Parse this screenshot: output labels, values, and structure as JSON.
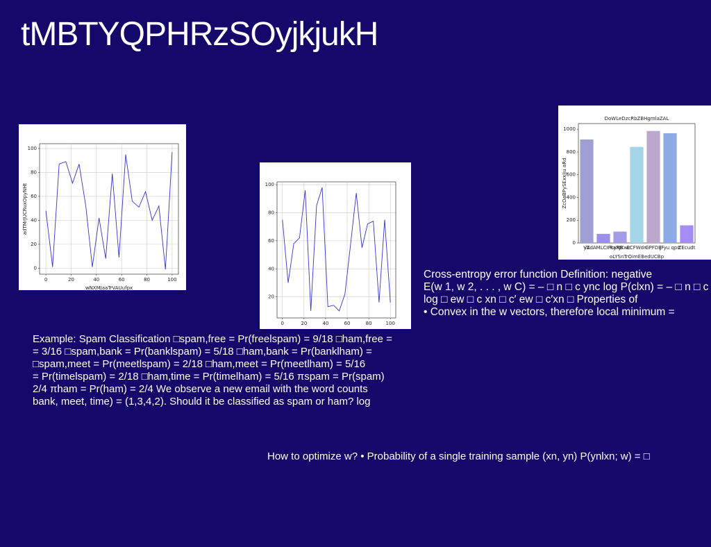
{
  "title": "tMBTYQPHRzSOyjkjukH",
  "chart_data": [
    {
      "type": "line",
      "xlabel": "wNXMJaaTrVAUufpx",
      "ylabel": "adTMrJUCRuxOpyNHt",
      "color": "#3333cc",
      "grid": true,
      "x": [
        0,
        5.3,
        10.5,
        15.8,
        21.1,
        26.3,
        31.6,
        36.8,
        42.1,
        47.4,
        52.6,
        57.9,
        63.2,
        68.4,
        73.7,
        78.9,
        84.2,
        89.5,
        94.7,
        100
      ],
      "values": [
        48,
        1,
        87,
        89,
        71,
        87,
        52,
        1,
        42,
        8,
        79,
        9,
        95,
        56,
        51,
        64,
        40,
        52,
        -1,
        97
      ],
      "xlim": [
        -5,
        105
      ],
      "ylim": [
        -5,
        104
      ],
      "xticks": [
        0,
        20,
        40,
        60,
        80,
        100
      ],
      "yticks": [
        0,
        20,
        40,
        60,
        80,
        100
      ]
    },
    {
      "type": "line",
      "color": "#3333cc",
      "grid": true,
      "x": [
        0,
        5.3,
        10.5,
        15.8,
        21.1,
        26.3,
        31.6,
        36.8,
        42.1,
        47.4,
        52.6,
        57.9,
        63.2,
        68.4,
        73.7,
        78.9,
        84.2,
        89.5,
        94.7,
        100
      ],
      "values": [
        75,
        30,
        58,
        62,
        96,
        10,
        85,
        98,
        13,
        14,
        10,
        22,
        58,
        94,
        55,
        72,
        74,
        16,
        75,
        16
      ],
      "xlim": [
        -5,
        105
      ],
      "ylim": [
        5,
        102
      ],
      "xticks": [
        0,
        20,
        40,
        60,
        80,
        100
      ],
      "yticks": [
        20,
        40,
        60,
        80,
        100
      ]
    },
    {
      "type": "bar",
      "title": "DoWLeDzcRbZBHgmlaZAL",
      "xlabel": "oLYSnTrOimEBedUCBp",
      "ylabel": "ZcOaBPySExxIju aRd",
      "grid": false,
      "categories": [
        "VA",
        "yZdAMLCIPcyRB",
        "RaXJKwc",
        "ECFWdn",
        "GPFDE",
        "JFyu qpn",
        "ZEcudt"
      ],
      "values": [
        910,
        80,
        100,
        845,
        985,
        965,
        155
      ],
      "colors": [
        "#9f9fd6",
        "#9a8fe8",
        "#a49ce6",
        "#a4d4e8",
        "#bba8cc",
        "#8eaae4",
        "#a48cf2"
      ],
      "ylim": [
        0,
        1050
      ],
      "yticks": [
        0,
        200,
        400,
        600,
        800,
        1000
      ]
    }
  ],
  "right_text": [
    "Cross-entropy error function Definition: negative",
    "E(w 1, w 2, . . . , w C) = – □ n □ c ync log P(clxn) = – □ n □ c",
    "log □ ew □ c xn □ c′ ew □ c′xn □ Properties of",
    "• Convex in the w vectors, therefore local minimum ="
  ],
  "left_text": [
    "Example: Spam Classification □spam,free = Pr(freelspam) = 9/18 □ham,free =",
    "= 3/16 □spam,bank = Pr(banklspam) = 5/18 □ham,bank = Pr(banklham) =",
    "□spam,meet = Pr(meetlspam) = 2/18 □ham,meet = Pr(meetlham) = 5/16",
    "= Pr(timelspam) = 2/18 □ham,time = Pr(timelham) = 5/16 πspam = Pr(spam)",
    "2/4 πham = Pr(ham) = 2/4 We observe a new email with the word counts",
    "bank, meet, time) = (1,3,4,2). Should it be classified as spam or ham? log"
  ],
  "bottom_text": "How to optimize w? • Probability of a single training sample (xn, yn) P(ynlxn; w) = □"
}
